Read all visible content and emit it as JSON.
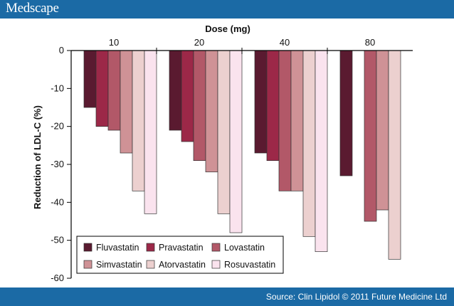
{
  "header": {
    "brand": "Medscape"
  },
  "footer": {
    "source": "Source: Clin Lipidol © 2011 Future Medicine Ltd"
  },
  "chart_data": {
    "type": "bar",
    "title": "",
    "xlabel": "Dose (mg)",
    "ylabel": "Reduction of LDL-C (%)",
    "ylim": [
      -60,
      0
    ],
    "yticks": [
      0,
      -10,
      -20,
      -30,
      -40,
      -50,
      -60
    ],
    "x_axis_position": "top",
    "grid": false,
    "legend_position": "bottom-left",
    "categories": [
      "10",
      "20",
      "40",
      "80"
    ],
    "series": [
      {
        "name": "Fluvastatin",
        "color": "#5a1a30",
        "values": [
          -15,
          -21,
          -27,
          -33
        ]
      },
      {
        "name": "Pravastatin",
        "color": "#9c2848",
        "values": [
          -20,
          -24,
          -29,
          null
        ]
      },
      {
        "name": "Lovastatin",
        "color": "#b25868",
        "values": [
          -21,
          -29,
          -37,
          -45
        ]
      },
      {
        "name": "Simvastatin",
        "color": "#cf9296",
        "values": [
          -27,
          -32,
          -37,
          -42
        ]
      },
      {
        "name": "Atorvastatin",
        "color": "#ecd0cf",
        "values": [
          -37,
          -43,
          -49,
          -55
        ]
      },
      {
        "name": "Rosuvastatin",
        "color": "#fae3ee",
        "values": [
          -43,
          -48,
          -53,
          null
        ]
      }
    ]
  }
}
